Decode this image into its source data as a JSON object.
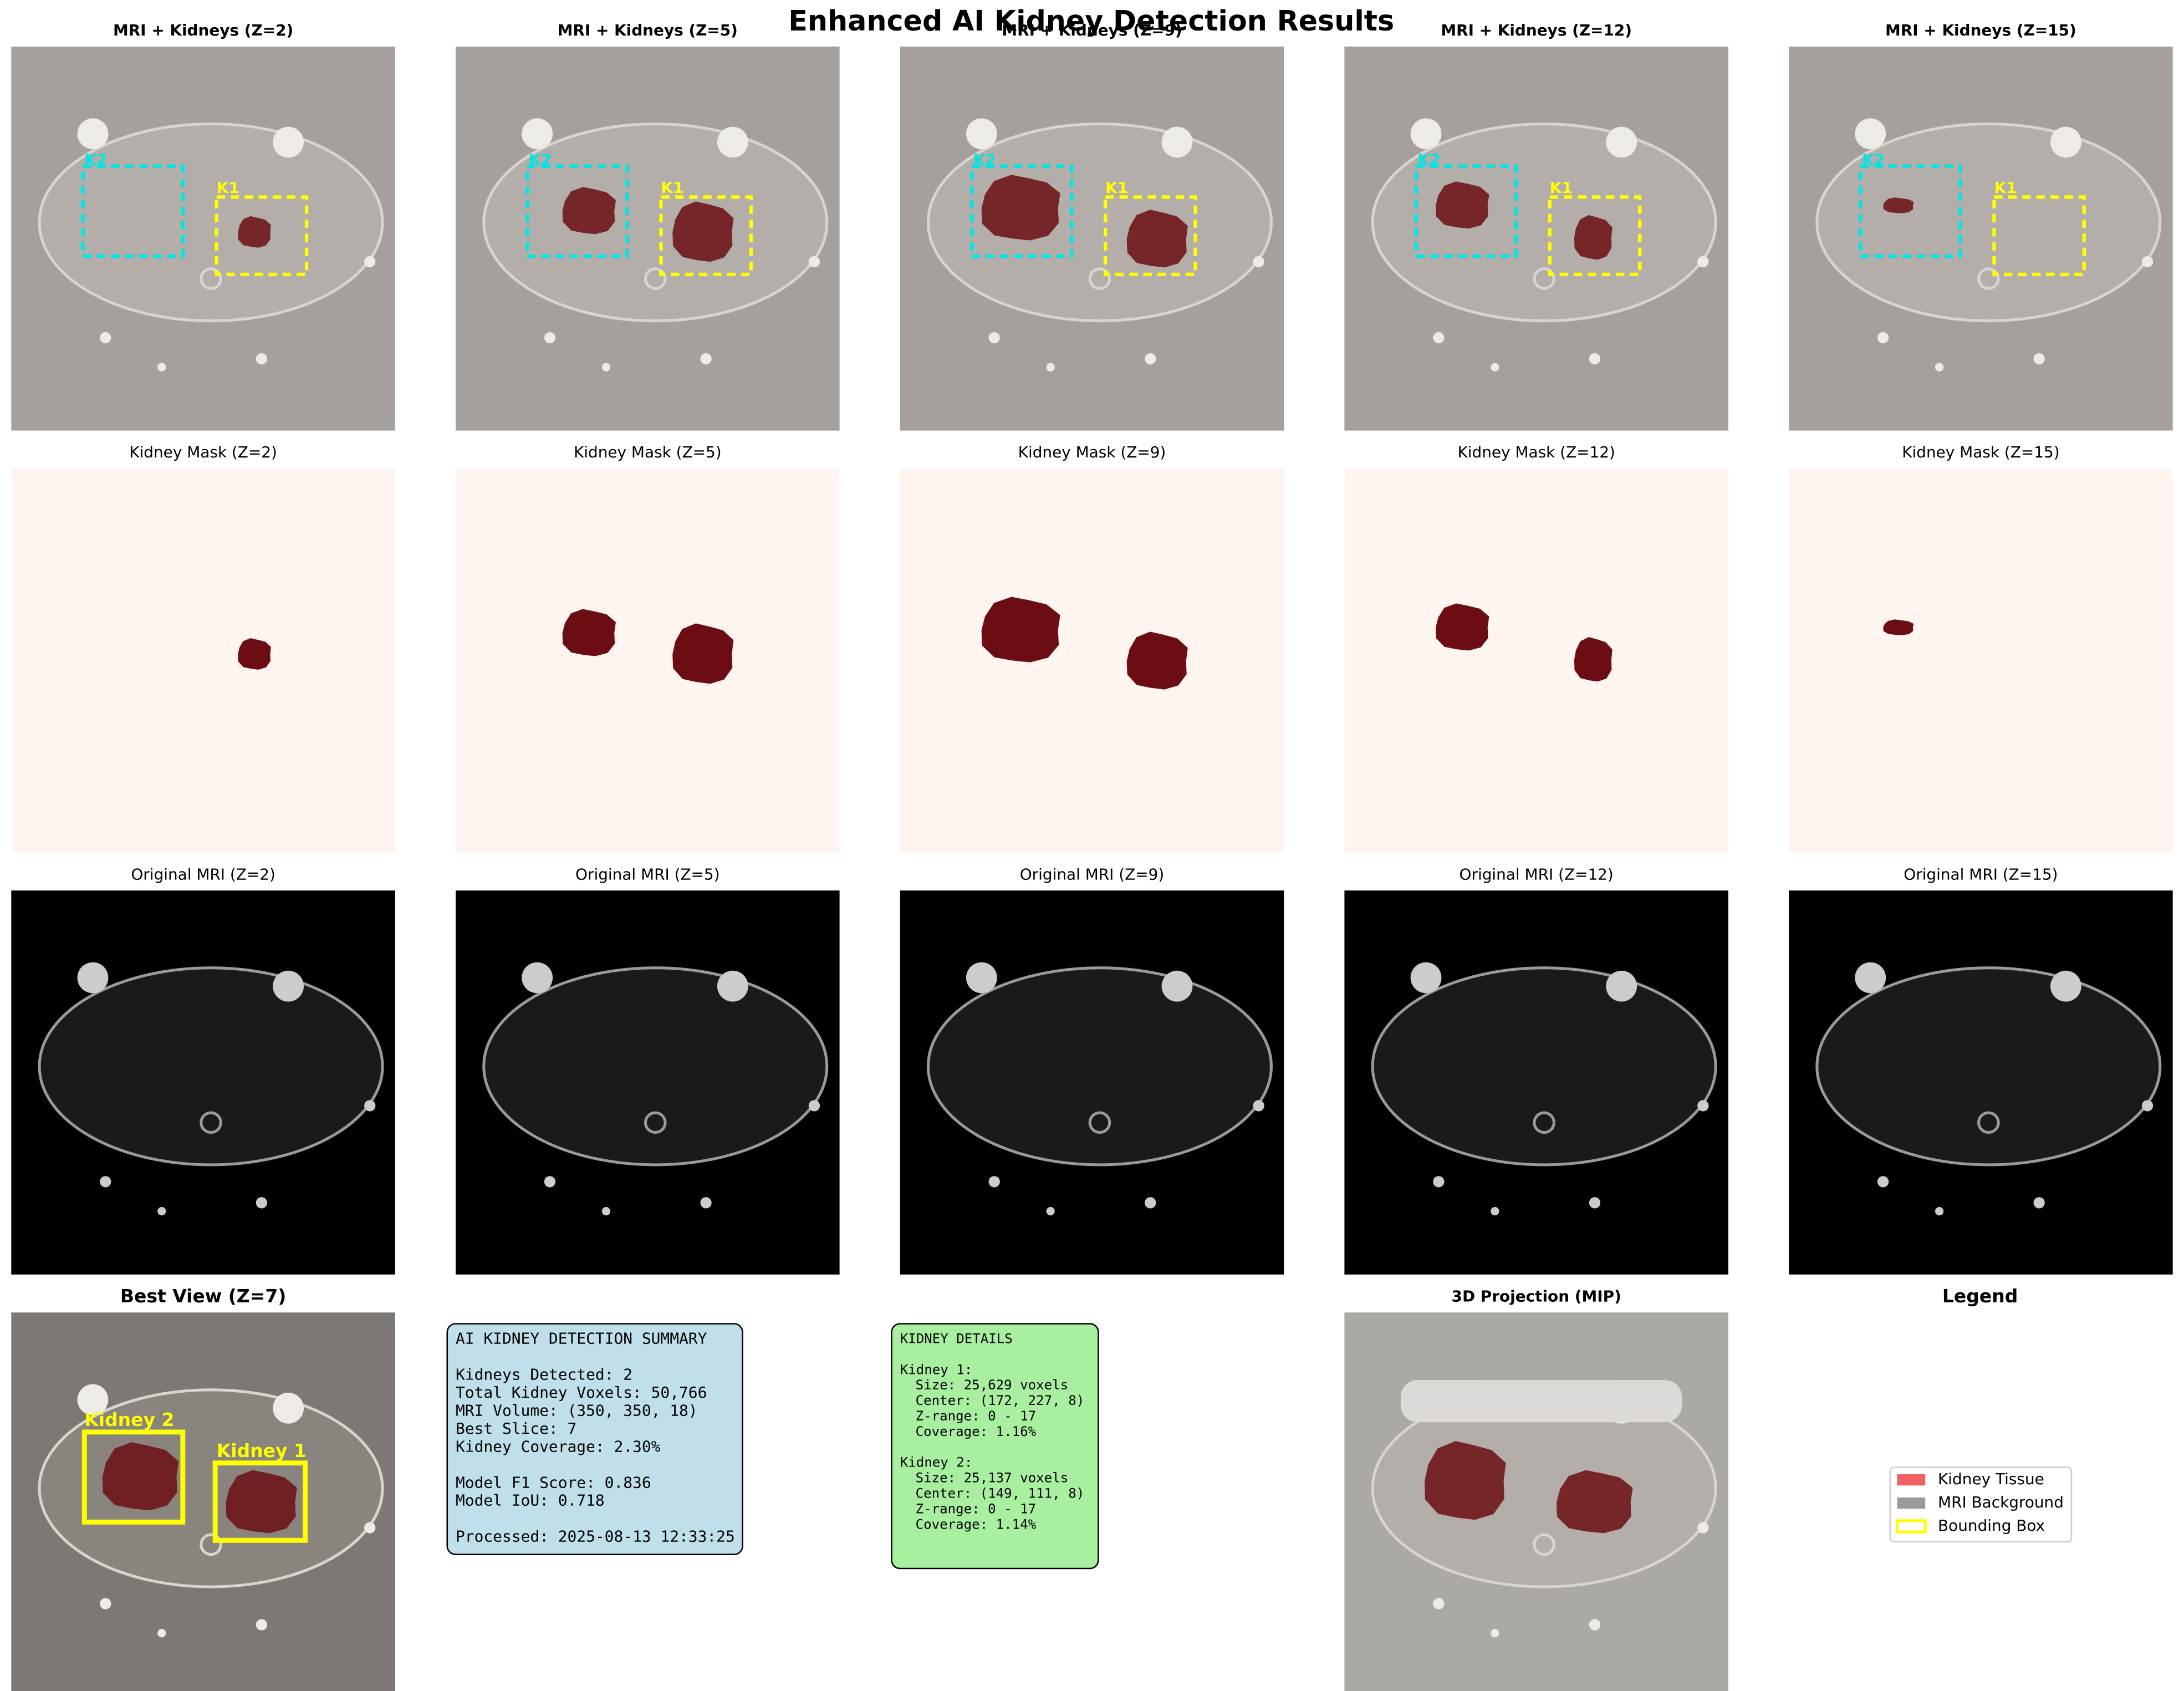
{
  "title": "Enhanced AI Kidney Detection Results",
  "overlay_titles": [
    "MRI + Kidneys (Z=2)",
    "MRI + Kidneys (Z=5)",
    "MRI + Kidneys (Z=9)",
    "MRI + Kidneys (Z=12)",
    "MRI + Kidneys (Z=15)"
  ],
  "mask_titles": [
    "Kidney Mask (Z=2)",
    "Kidney Mask (Z=5)",
    "Kidney Mask (Z=9)",
    "Kidney Mask (Z=12)",
    "Kidney Mask (Z=15)"
  ],
  "original_titles": [
    "Original MRI (Z=2)",
    "Original MRI (Z=5)",
    "Original MRI (Z=9)",
    "Original MRI (Z=12)",
    "Original MRI (Z=15)"
  ],
  "box_labels": [
    "K1",
    "K2"
  ],
  "best_view": {
    "title": "Best View (Z=7)",
    "labels": [
      "Kidney 1",
      "Kidney 2"
    ]
  },
  "summary": {
    "groups": [
      [
        "AI KIDNEY DETECTION SUMMARY"
      ],
      [
        "Kidneys Detected: 2",
        "Total Kidney Voxels: 50,766",
        "MRI Volume: (350, 350, 18)",
        "Best Slice: 7",
        "Kidney Coverage: 2.30%"
      ],
      [
        "Model F1 Score: 0.836",
        "Model IoU: 0.718"
      ],
      [
        "Processed: 2025-08-13 12:33:25"
      ]
    ]
  },
  "details": {
    "groups": [
      [
        "KIDNEY DETAILS"
      ],
      [
        "Kidney 1:",
        "Size: 25,629 voxels",
        "Center: (172, 227, 8)",
        "Z-range: 0 - 17",
        "Coverage: 1.16%"
      ],
      [
        "Kidney 2:",
        "Size: 25,137 voxels",
        "Center: (149, 111, 8)",
        "Z-range: 0 - 17",
        "Coverage: 1.14%"
      ]
    ]
  },
  "mip_title": "3D Projection (MIP)",
  "legend": {
    "title": "Legend",
    "entries": [
      "Kidney Tissue",
      "MRI Background",
      "Bounding Box"
    ]
  }
}
